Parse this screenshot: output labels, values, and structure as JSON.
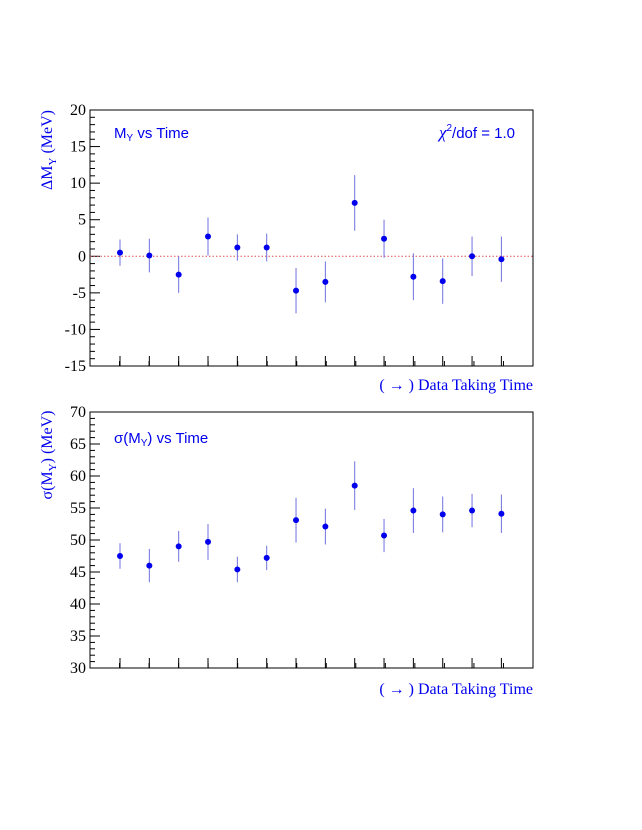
{
  "chart_data": [
    {
      "type": "scatter",
      "ylabel": "ΔM_Υ (MeV)",
      "xlabel": "( → ) Data Taking Time",
      "ylim": [
        -15,
        20
      ],
      "ytick_step": 5,
      "reference_line": 0,
      "annotation_left": "M_Υ vs Time",
      "annotation_right": "χ²/dof = 1.0",
      "colors": {
        "points": "#0000ee",
        "errors": "#7070e0",
        "reference": "#e05050"
      },
      "points": [
        {
          "x": 1,
          "y": 0.5,
          "err": 1.8
        },
        {
          "x": 2,
          "y": 0.1,
          "err": 2.3
        },
        {
          "x": 3,
          "y": -2.5,
          "err": 2.5
        },
        {
          "x": 4,
          "y": 2.7,
          "err": 2.6
        },
        {
          "x": 5,
          "y": 1.2,
          "err": 1.8
        },
        {
          "x": 6,
          "y": 1.2,
          "err": 1.9
        },
        {
          "x": 7,
          "y": -4.7,
          "err": 3.1
        },
        {
          "x": 8,
          "y": -3.5,
          "err": 2.8
        },
        {
          "x": 9,
          "y": 7.3,
          "err": 3.8
        },
        {
          "x": 10,
          "y": 2.4,
          "err": 2.6
        },
        {
          "x": 11,
          "y": -2.8,
          "err": 3.2
        },
        {
          "x": 12,
          "y": -3.4,
          "err": 3.1
        },
        {
          "x": 13,
          "y": 0.0,
          "err": 2.7
        },
        {
          "x": 14,
          "y": -0.4,
          "err": 3.1
        }
      ]
    },
    {
      "type": "scatter",
      "ylabel": "σ(M_Υ) (MeV)",
      "xlabel": "( → ) Data Taking Time",
      "ylim": [
        30,
        70
      ],
      "ytick_step": 5,
      "annotation_left": "σ(M_Υ) vs Time",
      "colors": {
        "points": "#0000ee",
        "errors": "#7070e0"
      },
      "points": [
        {
          "x": 1,
          "y": 47.5,
          "err": 2.0
        },
        {
          "x": 2,
          "y": 46.0,
          "err": 2.6
        },
        {
          "x": 3,
          "y": 49.0,
          "err": 2.4
        },
        {
          "x": 4,
          "y": 49.7,
          "err": 2.8
        },
        {
          "x": 5,
          "y": 45.4,
          "err": 2.0
        },
        {
          "x": 6,
          "y": 47.2,
          "err": 1.9
        },
        {
          "x": 7,
          "y": 53.1,
          "err": 3.5
        },
        {
          "x": 8,
          "y": 52.1,
          "err": 2.8
        },
        {
          "x": 9,
          "y": 58.5,
          "err": 3.8
        },
        {
          "x": 10,
          "y": 50.7,
          "err": 2.6
        },
        {
          "x": 11,
          "y": 54.6,
          "err": 3.5
        },
        {
          "x": 12,
          "y": 54.0,
          "err": 2.8
        },
        {
          "x": 13,
          "y": 54.6,
          "err": 2.6
        },
        {
          "x": 14,
          "y": 54.1,
          "err": 3.0
        }
      ]
    }
  ]
}
